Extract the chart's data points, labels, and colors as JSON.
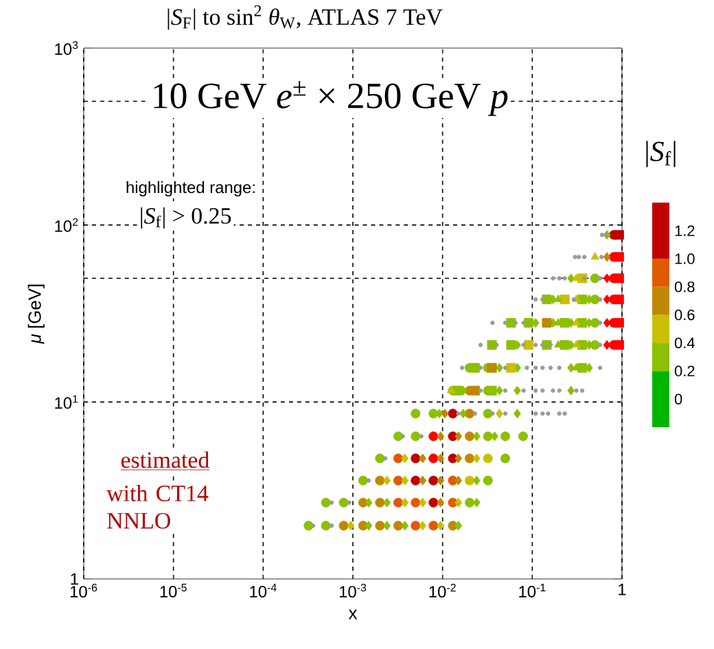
{
  "chart_data": {
    "type": "scatter",
    "title": "|*S*$_{F}$| to sin$^{2}$ *θ*$_{W}$, ATLAS 7 TeV",
    "xlabel": "x",
    "ylabel": "*μ* [GeV]",
    "clabel": "|*S*$_{f}$|",
    "annotations": [
      "10 GeV *e*$^{±}$ × 250 GeV *p*",
      "highlighted range:",
      "|*S*$_{f}$| > 0.25",
      "estimated",
      "with CT14 NNLO"
    ],
    "log": "xy",
    "grid": "x",
    "xlim": [
      1e-06,
      1
    ],
    "ylim": [
      1,
      1000
    ],
    "xticks": [
      {
        "value": 1e-06,
        "label": "10$^{-6}$"
      },
      {
        "value": 1e-05,
        "label": "10$^{-5}$"
      },
      {
        "value": 0.0001,
        "label": "10$^{-4}$"
      },
      {
        "value": 0.001,
        "label": "10$^{-3}$"
      },
      {
        "value": 0.01,
        "label": "10$^{-2}$"
      },
      {
        "value": 0.1,
        "label": "10$^{-1}$"
      },
      1
    ],
    "yticks": [
      1,
      {
        "value": 10,
        "label": "10$^{1}$"
      },
      {
        "value": 100,
        "label": "10$^{2}$"
      },
      {
        "value": 1000,
        "label": "10$^{3}$"
      }
    ],
    "clim": [
      -0.2,
      1.4
    ],
    "cticks": [
      0,
      0.2,
      0.4,
      0.6,
      0.8,
      {
        "value": 1,
        "label": "1.0"
      },
      1.2
    ],
    "ref_lines": [
      {
        "axis": "y",
        "value": 10,
        "line_style": "dashed"
      },
      {
        "axis": "y",
        "value": 50,
        "line_style": "dashed"
      },
      {
        "axis": "y",
        "value": 100,
        "line_style": "dashed"
      },
      {
        "axis": "y",
        "value": 500,
        "line_style": "dashed"
      }
    ],
    "series": [
      {
        "marker": "circle",
        "x": [
          0.00032,
          0.0005,
          0.00079,
          0.0013,
          0.002,
          0.0032,
          0.005,
          0.0079,
          0.013,
          0.0005,
          0.00079,
          0.0013,
          0.002,
          0.0032,
          0.005,
          0.0079,
          0.013,
          0.02,
          0.0013,
          0.002,
          0.0032,
          0.005,
          0.0079,
          0.013,
          0.02,
          0.032,
          0.002,
          0.0032,
          0.005,
          0.0079,
          0.013,
          0.02,
          0.032,
          0.05,
          0.0032,
          0.005,
          0.0079,
          0.013,
          0.02,
          0.032,
          0.05,
          0.079,
          0.005,
          0.0079,
          0.013,
          0.02,
          0.032,
          0.013,
          0.02,
          0.032,
          0.02,
          0.032,
          0.5,
          0.81,
          0.5,
          0.81,
          0.5,
          0.81,
          0.5,
          0.81,
          0.81,
          0.81
        ],
        "values": [
          2,
          2,
          2,
          2,
          2,
          2,
          2,
          2,
          2,
          2.7,
          2.7,
          2.7,
          2.7,
          2.7,
          2.7,
          2.7,
          2.7,
          2.7,
          3.6,
          3.6,
          3.6,
          3.6,
          3.6,
          3.6,
          3.6,
          3.6,
          4.8,
          4.8,
          4.8,
          4.8,
          4.8,
          4.8,
          4.8,
          4.8,
          6.4,
          6.4,
          6.4,
          6.4,
          6.4,
          6.4,
          6.4,
          6.4,
          8.6,
          8.6,
          8.6,
          8.6,
          8.6,
          11.6,
          11.6,
          11.6,
          15.6,
          15.6,
          21,
          21,
          28,
          28,
          38,
          38,
          50,
          50,
          66,
          88
        ],
        "colors": [
          "#8cc000",
          "#8cc000",
          "#c08800",
          "#c08800",
          "#c08800",
          "#c08800",
          "#e05a00",
          "#e05a00",
          "#c08800",
          "#8cc000",
          "#8cc000",
          "#c08800",
          "#c08800",
          "#e05a00",
          "#e05a00",
          "#c00000",
          "#e05a00",
          "#8cc000",
          "#8cc000",
          "#c08800",
          "#e05a00",
          "#c00000",
          "#c00000",
          "#e05a00",
          "#c8c000",
          "#8cc000",
          "#8cc000",
          "#e05a00",
          "#c00000",
          "#ff0000",
          "#c00000",
          "#c08800",
          "#c8c000",
          "#8cc000",
          "#8cc000",
          "#8cc000",
          "#ff0000",
          "#c00000",
          "#c08800",
          "#8cc000",
          "#8cc000",
          "#8cc000",
          "#8cc000",
          "#8cc000",
          "#c00000",
          "#c08800",
          "#8cc000",
          "#8cc000",
          "#c08800",
          "#8cc000",
          "#8cc000",
          "#8cc000",
          "#8cc000",
          "#ff0000",
          "#8cc000",
          "#ff0000",
          "#8cc000",
          "#ff0000",
          "#8cc000",
          "#ff0000",
          "#ff0000",
          "#c00000"
        ]
      },
      {
        "marker": "diamond",
        "x": [
          0.00095,
          0.0015,
          0.0024,
          0.0038,
          0.006,
          0.0095,
          0.015,
          0.0015,
          0.0024,
          0.0038,
          0.006,
          0.0095,
          0.015,
          0.024,
          0.0024,
          0.0038,
          0.006,
          0.0095,
          0.015,
          0.024,
          0.0038,
          0.006,
          0.0095,
          0.015,
          0.024,
          0.0095,
          0.015,
          0.024,
          0.038,
          0.0092,
          0.0106,
          0.017,
          0.043,
          0.068,
          0.017,
          0.043,
          0.068,
          0.27,
          0.043,
          0.068,
          0.27,
          0.43,
          0.068,
          0.27,
          0.43,
          0.68,
          0.109,
          0.17,
          0.27,
          0.43,
          0.68,
          0.17,
          0.43,
          0.68,
          0.27,
          0.68,
          0.68,
          0.68
        ],
        "values": [
          2,
          2,
          2,
          2,
          2,
          2,
          2,
          2.7,
          2.7,
          2.7,
          2.7,
          2.7,
          2.7,
          2.7,
          3.6,
          3.6,
          3.6,
          3.6,
          3.6,
          3.6,
          4.8,
          4.8,
          4.8,
          4.8,
          4.8,
          6.4,
          6.4,
          6.4,
          6.4,
          8.6,
          8.6,
          8.6,
          8.6,
          8.6,
          11.6,
          11.6,
          11.6,
          11.6,
          15.6,
          15.6,
          15.6,
          15.6,
          21,
          21,
          21,
          21,
          28,
          28,
          28,
          28,
          28,
          38,
          38,
          38,
          50,
          50,
          66,
          88
        ],
        "colors": [
          "#c8c000",
          "#8cc000",
          "#8cc000",
          "#8cc000",
          "#c8c000",
          "#c8c000",
          "#8cc000",
          "#8cc000",
          "#8cc000",
          "#c8c000",
          "#c8c000",
          "#c08800",
          "#c8c000",
          "#8cc000",
          "#c8c000",
          "#c8c000",
          "#c08800",
          "#c08800",
          "#c08800",
          "#8cc000",
          "#c8c000",
          "#c08800",
          "#c08800",
          "#c08800",
          "#c8c000",
          "#c08800",
          "#c08800",
          "#8cc000",
          "#8cc000",
          "#8cc000",
          "#c08800",
          "#8cc000",
          "#c8c000",
          "#8cc000",
          "#8cc000",
          "#8cc000",
          "#8cc000",
          "#8cc000",
          "#8cc000",
          "#8cc000",
          "#8cc000",
          "#8cc000",
          "#8cc000",
          "#8cc000",
          "#8cc000",
          "#ff0000",
          "#8cc000",
          "#8cc000",
          "#8cc000",
          "#8cc000",
          "#ff0000",
          "#8cc000",
          "#8cc000",
          "#ff0000",
          "#8cc000",
          "#ff0000",
          "#c08800",
          "#8cc000"
        ]
      },
      {
        "marker": "square",
        "x": [
          0.0148,
          0.023,
          0.0355,
          0.023,
          0.0355,
          0.058,
          0.36,
          0.0355,
          0.058,
          0.091,
          0.145,
          0.23,
          0.36,
          0.93,
          0.058,
          0.091,
          0.145,
          0.23,
          0.36,
          0.93,
          0.145,
          0.23,
          0.36,
          0.93,
          0.36,
          0.93,
          0.93,
          0.93
        ],
        "values": [
          11.6,
          11.6,
          11.6,
          15.6,
          15.6,
          15.6,
          15.6,
          21,
          21,
          21,
          21,
          21,
          21,
          21,
          28,
          28,
          28,
          28,
          28,
          28,
          38,
          38,
          38,
          38,
          50,
          50,
          66,
          88
        ],
        "colors": [
          "#8cc000",
          "#c08800",
          "#8cc000",
          "#8cc000",
          "#c08800",
          "#c8c000",
          "#8cc000",
          "#8cc000",
          "#8cc000",
          "#c8c000",
          "#8cc000",
          "#8cc000",
          "#8cc000",
          "#ff0000",
          "#8cc000",
          "#8cc000",
          "#c08800",
          "#8cc000",
          "#8cc000",
          "#ff0000",
          "#8cc000",
          "#c8c000",
          "#8cc000",
          "#ff0000",
          "#c8c000",
          "#ff0000",
          "#ff0000",
          "#c00000"
        ]
      },
      {
        "marker": "triangle",
        "x": [
          0.0124,
          0.31,
          0.195,
          0.31,
          0.195,
          0.31,
          0.195,
          0.31,
          0.31,
          0.5
        ],
        "values": [
          11.6,
          15.6,
          21,
          21,
          28,
          28,
          38,
          38,
          50,
          66
        ],
        "colors": [
          "#c8c000",
          "#8cc000",
          "#8cc000",
          "#c8c000",
          "#8cc000",
          "#c8c000",
          "#8cc000",
          "#c8c000",
          "#c8c000",
          "#c8c000"
        ]
      },
      {
        "marker": "circle",
        "color": "#9a9a9a",
        "x": [
          0.00036,
          0.00058,
          0.00058,
          0.00091,
          0.0015,
          0.0023,
          0.0036,
          0.0058,
          0.015,
          0.023,
          0.036,
          0.05,
          0.109,
          0.13,
          0.15,
          0.2,
          0.23,
          0.0265,
          0.05,
          0.08,
          0.109,
          0.13,
          0.17,
          0.2,
          0.31,
          0.36,
          0.0165,
          0.0265,
          0.05,
          0.087,
          0.109,
          0.13,
          0.16,
          0.2,
          0.57,
          0.0265,
          0.04,
          0.08,
          0.109,
          0.13,
          0.16,
          0.57,
          0.036,
          0.05,
          0.065,
          0.08,
          0.57,
          0.109,
          0.13,
          0.29,
          0.57,
          0.17,
          0.2,
          0.23,
          0.38,
          0.57,
          0.3,
          0.33,
          0.38,
          0.59,
          0.6,
          0.66
        ],
        "values": [
          2,
          2,
          2.7,
          2.7,
          3.6,
          4.8,
          6.4,
          6.4,
          8.6,
          8.6,
          8.6,
          8.6,
          8.6,
          8.6,
          8.6,
          8.6,
          8.6,
          11.6,
          11.6,
          11.6,
          11.6,
          11.6,
          11.6,
          11.6,
          11.6,
          11.6,
          15.6,
          15.6,
          15.6,
          15.6,
          15.6,
          15.6,
          15.6,
          15.6,
          15.6,
          21,
          21,
          21,
          21,
          21,
          21,
          21,
          28,
          28,
          28,
          28,
          28,
          38,
          38,
          38,
          38,
          50,
          50,
          50,
          50,
          50,
          66,
          66,
          66,
          66,
          88,
          88
        ]
      }
    ]
  }
}
